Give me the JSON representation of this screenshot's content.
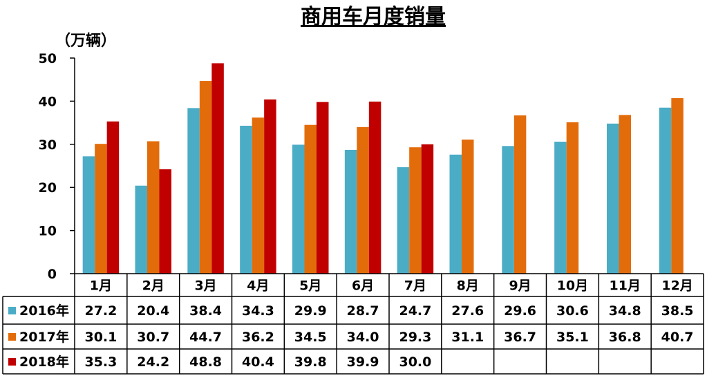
{
  "chart_data": {
    "type": "bar",
    "title": "商用车月度销量",
    "unit_label": "（万辆）",
    "ylim": [
      0,
      50
    ],
    "yticks": [
      "0",
      "10",
      "20",
      "30",
      "40",
      "50"
    ],
    "grid": false,
    "legend": "data-table",
    "categories": [
      "1月",
      "2月",
      "3月",
      "4月",
      "5月",
      "6月",
      "7月",
      "8月",
      "9月",
      "10月",
      "11月",
      "12月"
    ],
    "series": [
      {
        "name": "2016年",
        "color": "#4BACC6",
        "values": [
          27.2,
          20.4,
          38.4,
          34.3,
          29.9,
          28.7,
          24.7,
          27.6,
          29.6,
          30.6,
          34.8,
          38.5
        ],
        "labels": [
          "27.2",
          "20.4",
          "38.4",
          "34.3",
          "29.9",
          "28.7",
          "24.7",
          "27.6",
          "29.6",
          "30.6",
          "34.8",
          "38.5"
        ]
      },
      {
        "name": "2017年",
        "color": "#E36C0A",
        "values": [
          30.1,
          30.7,
          44.7,
          36.2,
          34.5,
          34.0,
          29.3,
          31.1,
          36.7,
          35.1,
          36.8,
          40.7
        ],
        "labels": [
          "30.1",
          "30.7",
          "44.7",
          "36.2",
          "34.5",
          "34.0",
          "29.3",
          "31.1",
          "36.7",
          "35.1",
          "36.8",
          "40.7"
        ]
      },
      {
        "name": "2018年",
        "color": "#C00000",
        "values": [
          35.3,
          24.2,
          48.8,
          40.4,
          39.8,
          39.9,
          30.0,
          null,
          null,
          null,
          null,
          null
        ],
        "labels": [
          "35.3",
          "24.2",
          "48.8",
          "40.4",
          "39.8",
          "39.9",
          "30.0",
          "",
          "",
          "",
          "",
          ""
        ]
      }
    ]
  }
}
